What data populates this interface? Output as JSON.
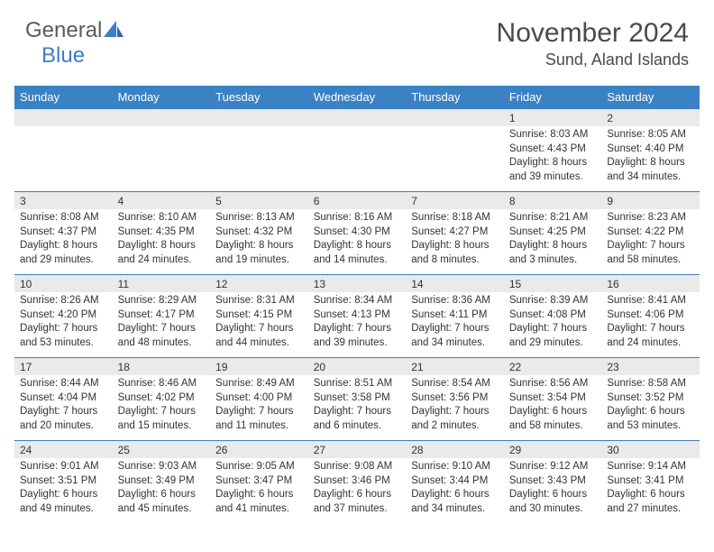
{
  "logo": {
    "general": "General",
    "blue": "Blue"
  },
  "title": "November 2024",
  "location": "Sund, Aland Islands",
  "colors": {
    "header_bg": "#3b82c4",
    "header_text": "#ffffff",
    "date_bg": "#eaeaea",
    "border": "#3b7fc4",
    "text": "#333333",
    "logo_gray": "#5a5a5a",
    "logo_blue": "#3b7fc4"
  },
  "day_names": [
    "Sunday",
    "Monday",
    "Tuesday",
    "Wednesday",
    "Thursday",
    "Friday",
    "Saturday"
  ],
  "weeks": [
    [
      null,
      null,
      null,
      null,
      null,
      {
        "d": "1",
        "sr": "8:03 AM",
        "ss": "4:43 PM",
        "dl": "8 hours and 39 minutes."
      },
      {
        "d": "2",
        "sr": "8:05 AM",
        "ss": "4:40 PM",
        "dl": "8 hours and 34 minutes."
      }
    ],
    [
      {
        "d": "3",
        "sr": "8:08 AM",
        "ss": "4:37 PM",
        "dl": "8 hours and 29 minutes."
      },
      {
        "d": "4",
        "sr": "8:10 AM",
        "ss": "4:35 PM",
        "dl": "8 hours and 24 minutes."
      },
      {
        "d": "5",
        "sr": "8:13 AM",
        "ss": "4:32 PM",
        "dl": "8 hours and 19 minutes."
      },
      {
        "d": "6",
        "sr": "8:16 AM",
        "ss": "4:30 PM",
        "dl": "8 hours and 14 minutes."
      },
      {
        "d": "7",
        "sr": "8:18 AM",
        "ss": "4:27 PM",
        "dl": "8 hours and 8 minutes."
      },
      {
        "d": "8",
        "sr": "8:21 AM",
        "ss": "4:25 PM",
        "dl": "8 hours and 3 minutes."
      },
      {
        "d": "9",
        "sr": "8:23 AM",
        "ss": "4:22 PM",
        "dl": "7 hours and 58 minutes."
      }
    ],
    [
      {
        "d": "10",
        "sr": "8:26 AM",
        "ss": "4:20 PM",
        "dl": "7 hours and 53 minutes."
      },
      {
        "d": "11",
        "sr": "8:29 AM",
        "ss": "4:17 PM",
        "dl": "7 hours and 48 minutes."
      },
      {
        "d": "12",
        "sr": "8:31 AM",
        "ss": "4:15 PM",
        "dl": "7 hours and 44 minutes."
      },
      {
        "d": "13",
        "sr": "8:34 AM",
        "ss": "4:13 PM",
        "dl": "7 hours and 39 minutes."
      },
      {
        "d": "14",
        "sr": "8:36 AM",
        "ss": "4:11 PM",
        "dl": "7 hours and 34 minutes."
      },
      {
        "d": "15",
        "sr": "8:39 AM",
        "ss": "4:08 PM",
        "dl": "7 hours and 29 minutes."
      },
      {
        "d": "16",
        "sr": "8:41 AM",
        "ss": "4:06 PM",
        "dl": "7 hours and 24 minutes."
      }
    ],
    [
      {
        "d": "17",
        "sr": "8:44 AM",
        "ss": "4:04 PM",
        "dl": "7 hours and 20 minutes."
      },
      {
        "d": "18",
        "sr": "8:46 AM",
        "ss": "4:02 PM",
        "dl": "7 hours and 15 minutes."
      },
      {
        "d": "19",
        "sr": "8:49 AM",
        "ss": "4:00 PM",
        "dl": "7 hours and 11 minutes."
      },
      {
        "d": "20",
        "sr": "8:51 AM",
        "ss": "3:58 PM",
        "dl": "7 hours and 6 minutes."
      },
      {
        "d": "21",
        "sr": "8:54 AM",
        "ss": "3:56 PM",
        "dl": "7 hours and 2 minutes."
      },
      {
        "d": "22",
        "sr": "8:56 AM",
        "ss": "3:54 PM",
        "dl": "6 hours and 58 minutes."
      },
      {
        "d": "23",
        "sr": "8:58 AM",
        "ss": "3:52 PM",
        "dl": "6 hours and 53 minutes."
      }
    ],
    [
      {
        "d": "24",
        "sr": "9:01 AM",
        "ss": "3:51 PM",
        "dl": "6 hours and 49 minutes."
      },
      {
        "d": "25",
        "sr": "9:03 AM",
        "ss": "3:49 PM",
        "dl": "6 hours and 45 minutes."
      },
      {
        "d": "26",
        "sr": "9:05 AM",
        "ss": "3:47 PM",
        "dl": "6 hours and 41 minutes."
      },
      {
        "d": "27",
        "sr": "9:08 AM",
        "ss": "3:46 PM",
        "dl": "6 hours and 37 minutes."
      },
      {
        "d": "28",
        "sr": "9:10 AM",
        "ss": "3:44 PM",
        "dl": "6 hours and 34 minutes."
      },
      {
        "d": "29",
        "sr": "9:12 AM",
        "ss": "3:43 PM",
        "dl": "6 hours and 30 minutes."
      },
      {
        "d": "30",
        "sr": "9:14 AM",
        "ss": "3:41 PM",
        "dl": "6 hours and 27 minutes."
      }
    ]
  ],
  "labels": {
    "sunrise": "Sunrise:",
    "sunset": "Sunset:",
    "daylight": "Daylight:"
  }
}
